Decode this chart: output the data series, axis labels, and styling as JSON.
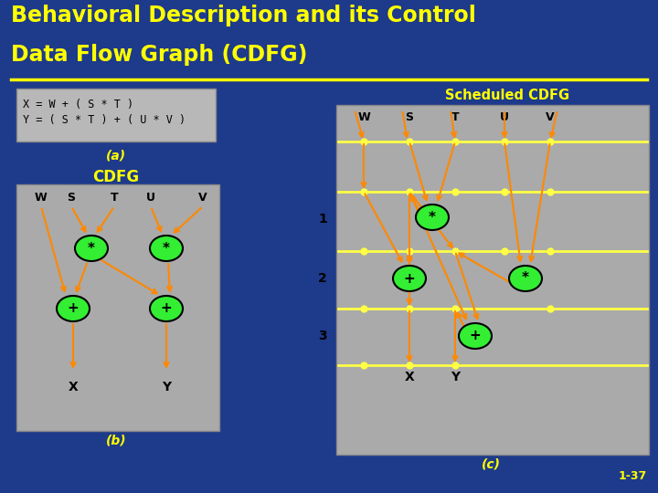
{
  "bg_color": "#1e3a8a",
  "title_line1": "Behavioral Description and its Control",
  "title_line2": "Data Flow Graph (CDFG)",
  "title_color": "#ffff00",
  "title_fontsize": 17,
  "underline_color": "#ffff00",
  "panel_color": "#aaaaaa",
  "node_color": "#33ee33",
  "arrow_color": "#ff8800",
  "hline_color": "#ffff44",
  "dot_color": "#ffff44",
  "label_color": "#ffff00",
  "text_color": "#000000",
  "slide_num": "1-37",
  "eq_line1": "X = W + ( S * T )",
  "eq_line2": "Y = ( S * T ) + ( U * V )"
}
